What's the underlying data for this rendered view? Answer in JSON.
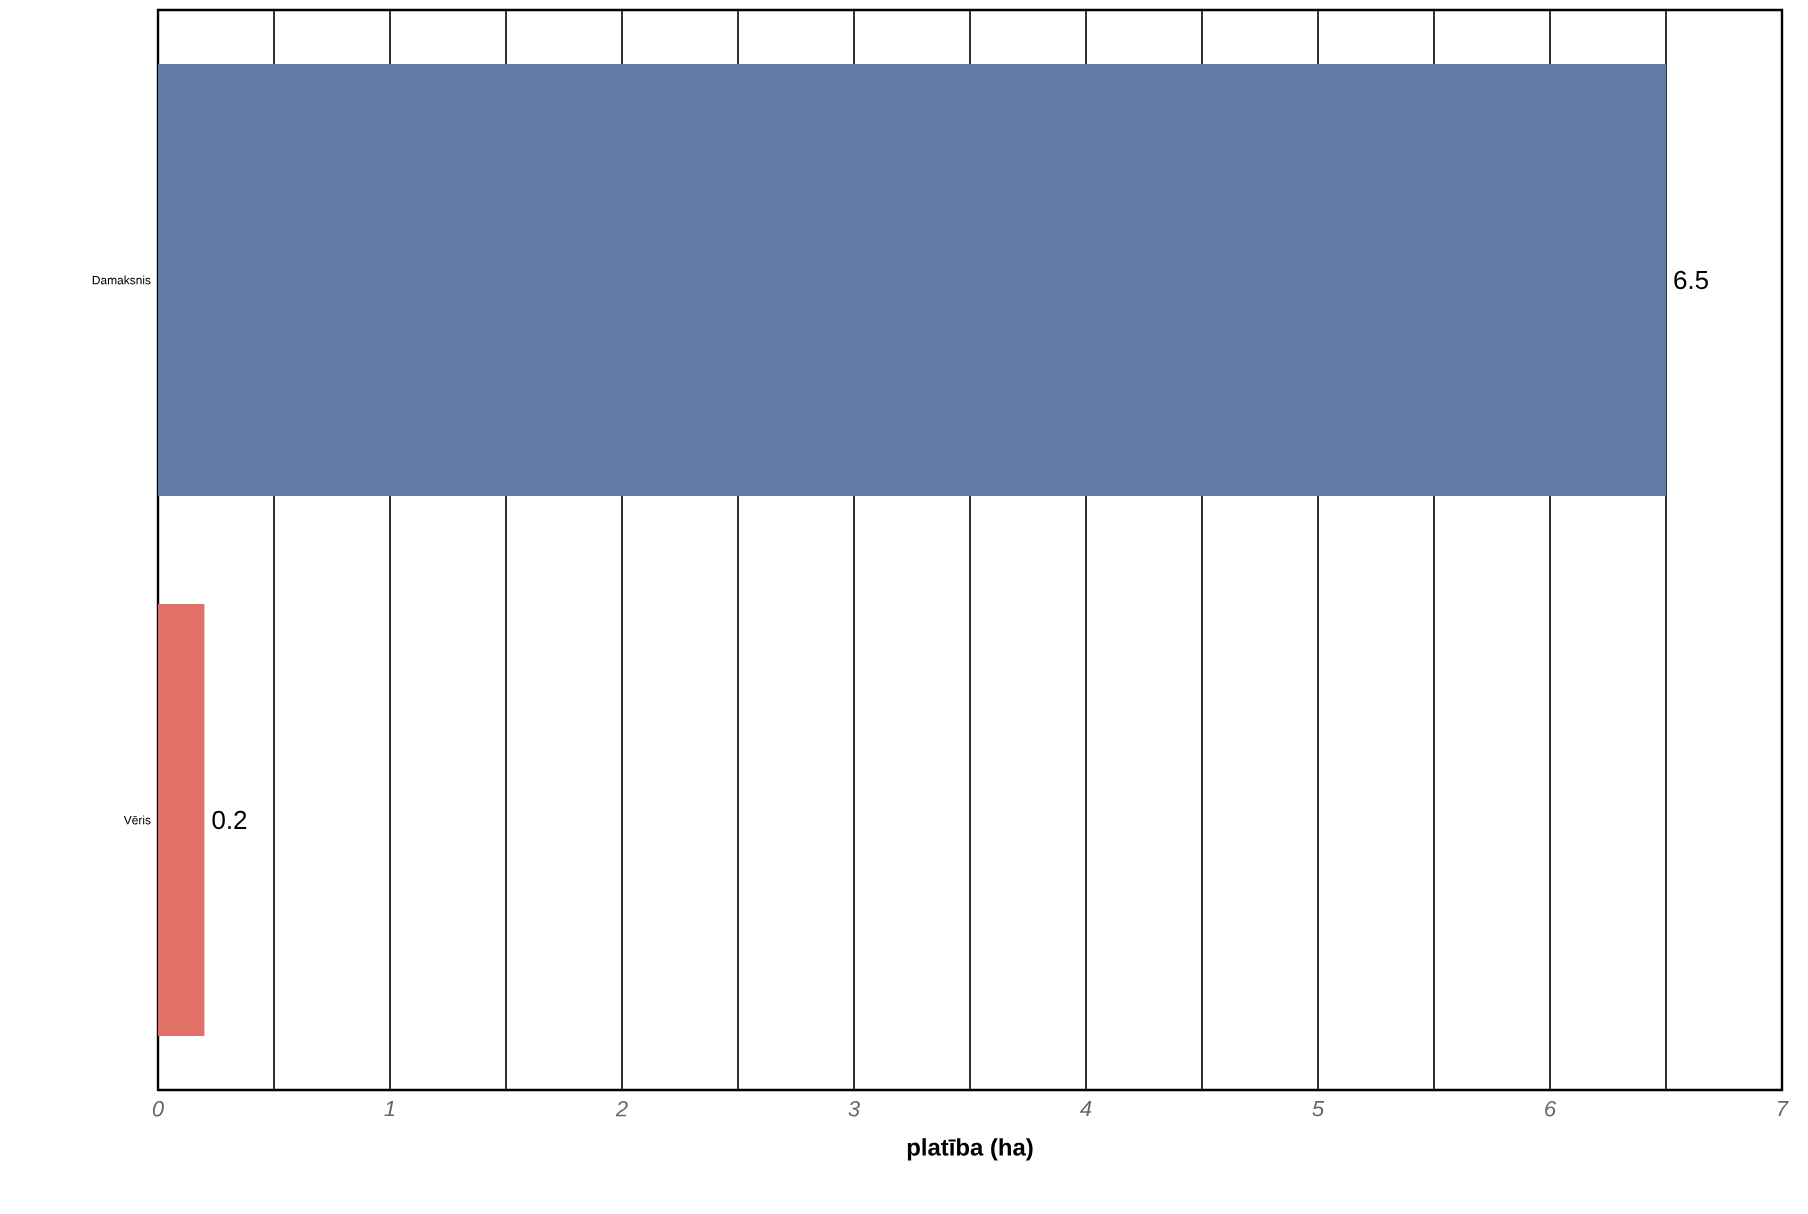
{
  "chart_data": {
    "type": "bar",
    "orientation": "horizontal",
    "xlabel": "**platība (ha)**",
    "categories": [
      "Damaksnis",
      "Vēris"
    ],
    "values": [
      6.5,
      0.2
    ],
    "colors": [
      "#627ca5",
      "#e07068"
    ],
    "data_labels": true,
    "xlim": [
      0,
      7
    ],
    "xticks": [
      0,
      {
        "value": 0.5,
        "label": null
      },
      1,
      {
        "value": 1.5,
        "label": null
      },
      2,
      {
        "value": 2.5,
        "label": null
      },
      3,
      {
        "value": 3.5,
        "label": null
      },
      4,
      {
        "value": 4.5,
        "label": null
      },
      5,
      {
        "value": 5.5,
        "label": null
      },
      6,
      {
        "value": 6.5,
        "label": null
      },
      7
    ],
    "grid": "x"
  }
}
